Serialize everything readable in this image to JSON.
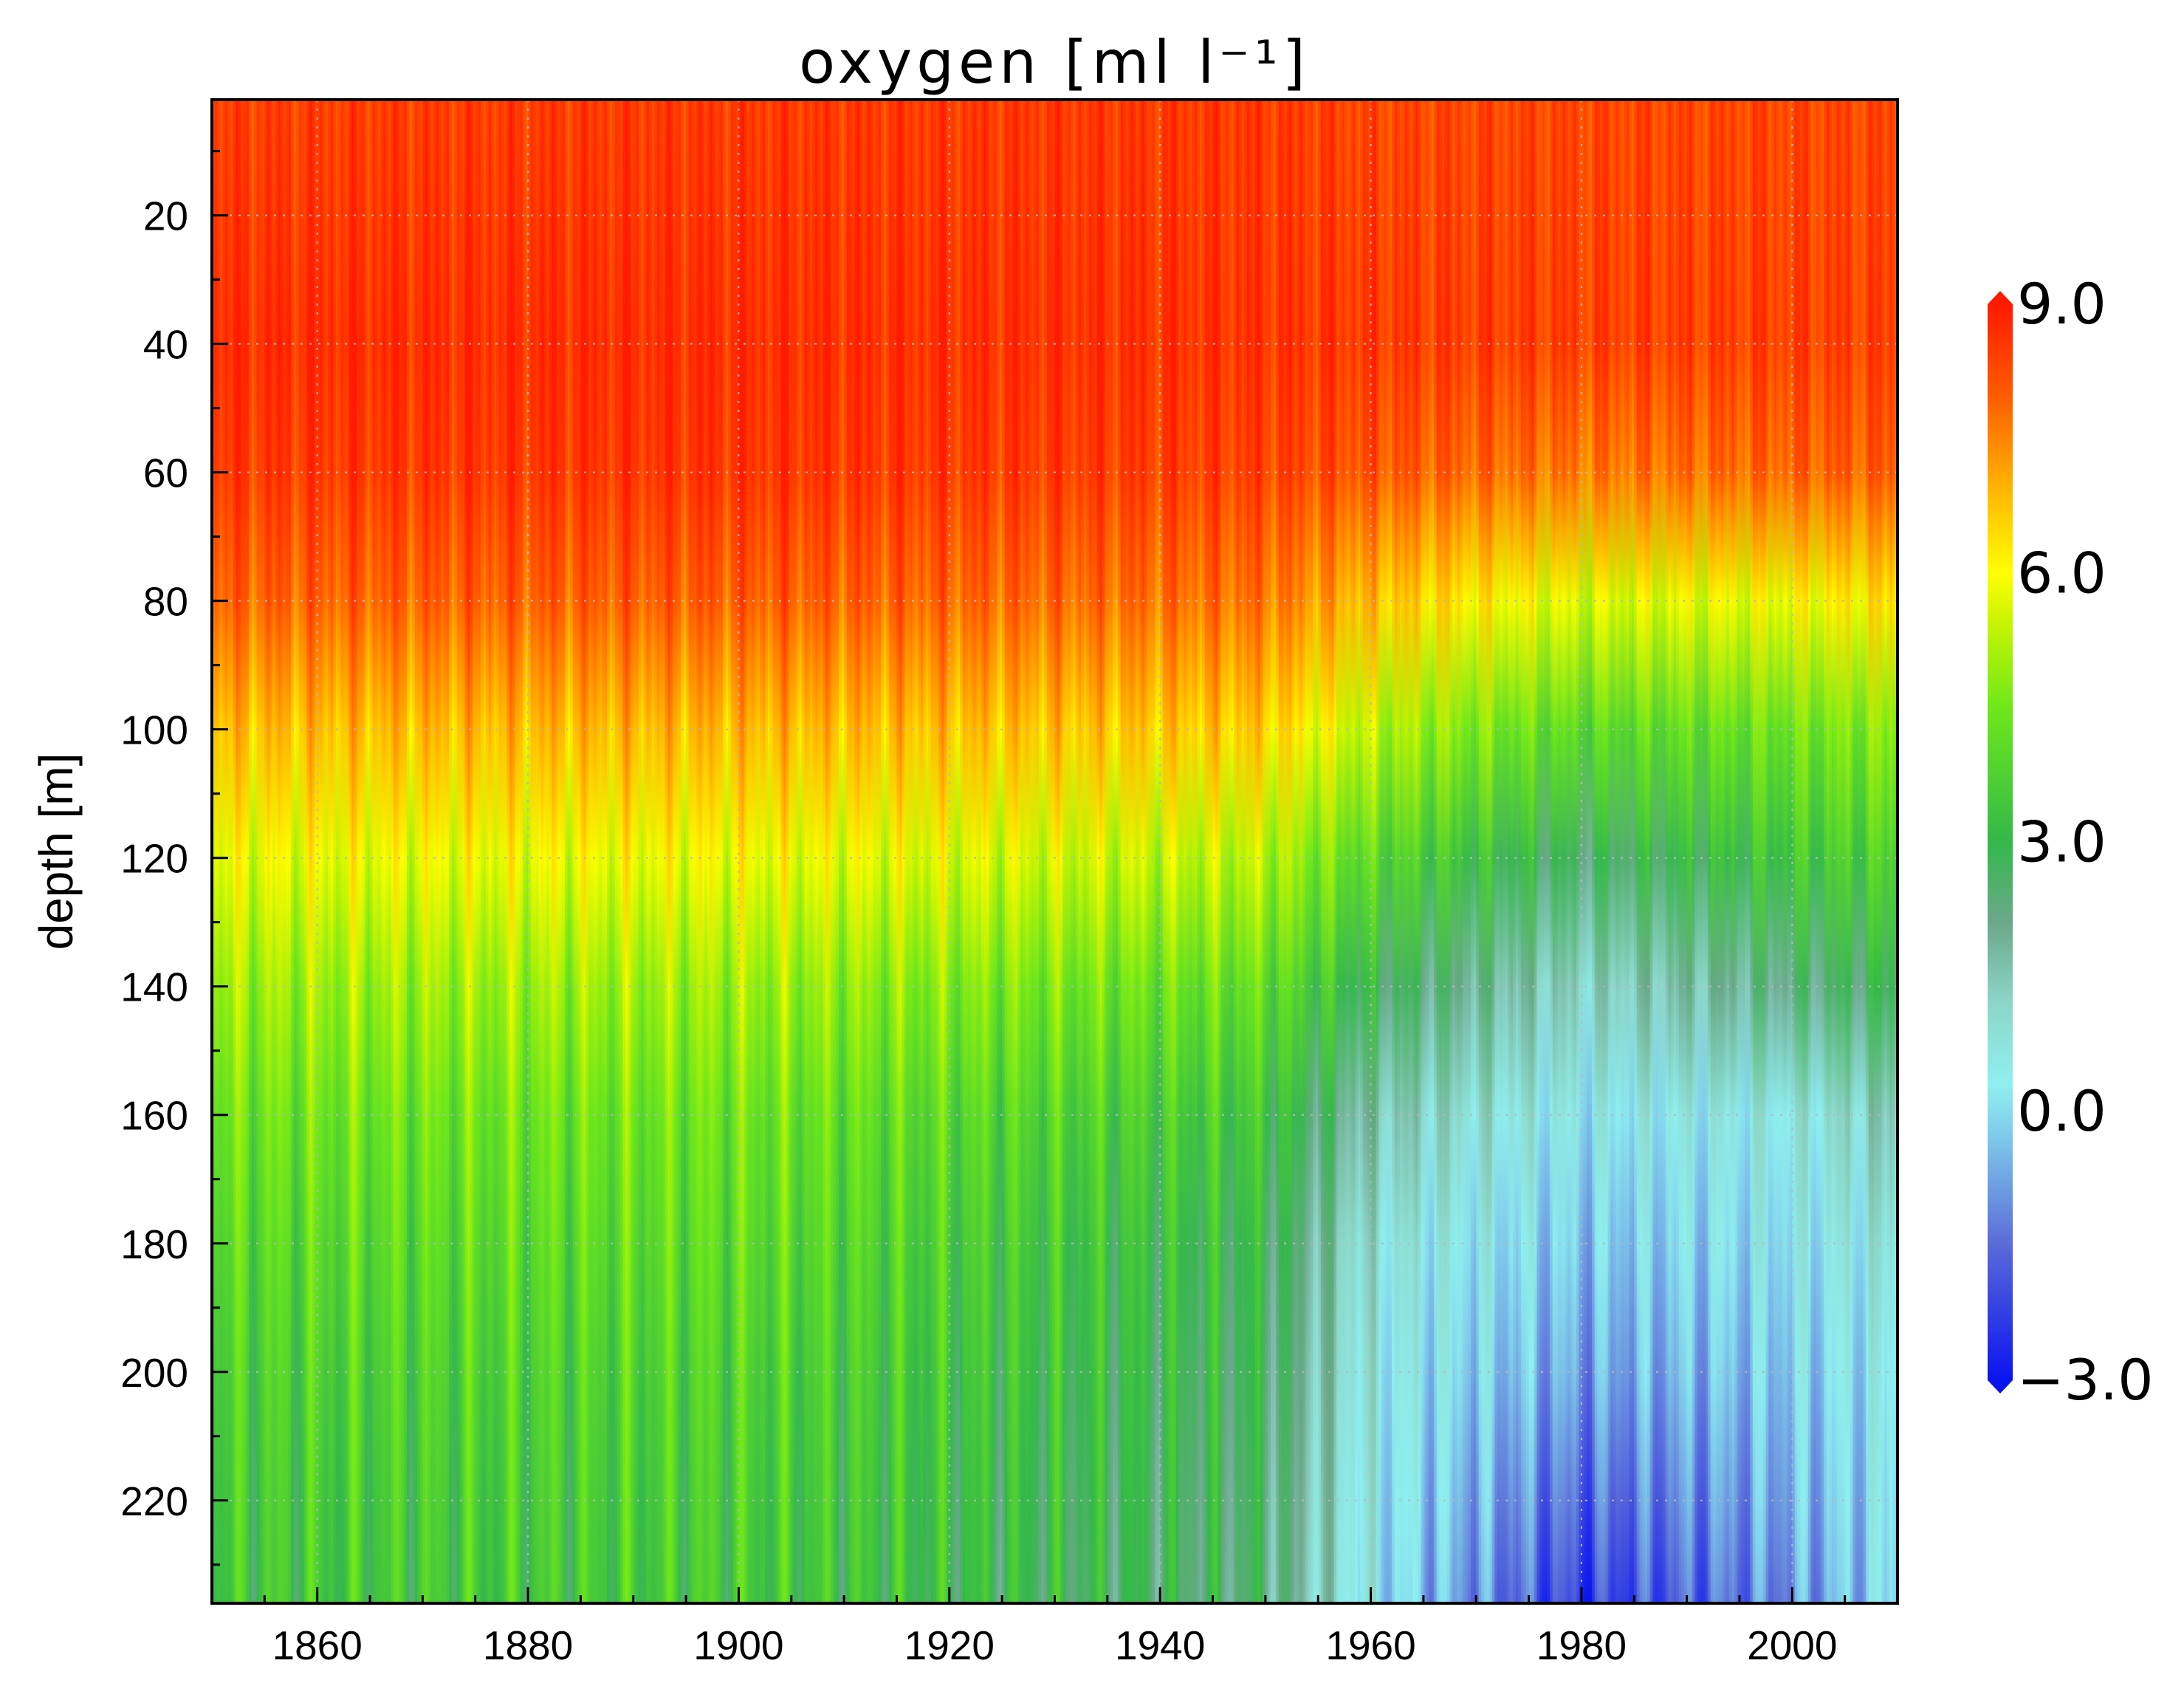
{
  "chart_data": {
    "type": "heatmap",
    "title": "oxygen  [ml l⁻¹]",
    "xlabel": "",
    "ylabel": "depth [m]",
    "xlim": [
      1850,
      2010
    ],
    "ylim": [
      236,
      2
    ],
    "y_inverted": true,
    "x_ticks": [
      "1860",
      "1880",
      "1900",
      "1920",
      "1940",
      "1960",
      "1980",
      "2000"
    ],
    "y_ticks": [
      "20",
      "40",
      "60",
      "80",
      "100",
      "120",
      "140",
      "160",
      "180",
      "200",
      "220"
    ],
    "grid": true,
    "colorbar": {
      "range": [
        -3.0,
        9.0
      ],
      "ticks": [
        "9.0",
        "6.0",
        "3.0",
        "0.0",
        "−3.0"
      ],
      "stops": [
        {
          "value": -3.0,
          "color": "#0a14f0"
        },
        {
          "value": -1.5,
          "color": "#5a6ad8"
        },
        {
          "value": -0.3,
          "color": "#7ec8ea"
        },
        {
          "value": 0.3,
          "color": "#8ff0f0"
        },
        {
          "value": 1.2,
          "color": "#8cd6c8"
        },
        {
          "value": 2.1,
          "color": "#6ca88c"
        },
        {
          "value": 3.0,
          "color": "#33b84a"
        },
        {
          "value": 4.5,
          "color": "#6ee81a"
        },
        {
          "value": 5.5,
          "color": "#cdf500"
        },
        {
          "value": 6.0,
          "color": "#ffff00"
        },
        {
          "value": 7.0,
          "color": "#ffb000"
        },
        {
          "value": 8.0,
          "color": "#ff5a00"
        },
        {
          "value": 9.0,
          "color": "#ff1a00"
        }
      ]
    },
    "depth_profile_years": [
      1850,
      1900,
      1950,
      1960,
      1980,
      2000,
      2010
    ],
    "depth_profile": [
      {
        "depth": 2,
        "values": [
          8.4,
          8.5,
          8.5,
          8.3,
          8.3,
          8.3,
          8.3
        ]
      },
      {
        "depth": 40,
        "values": [
          8.7,
          8.7,
          8.6,
          8.5,
          8.4,
          8.4,
          8.4
        ]
      },
      {
        "depth": 60,
        "values": [
          8.5,
          8.6,
          8.4,
          8.1,
          7.6,
          7.9,
          8.0
        ]
      },
      {
        "depth": 80,
        "values": [
          7.9,
          8.0,
          7.7,
          6.8,
          5.6,
          5.9,
          6.4
        ]
      },
      {
        "depth": 100,
        "values": [
          6.8,
          6.9,
          6.6,
          5.3,
          4.0,
          4.4,
          4.8
        ]
      },
      {
        "depth": 120,
        "values": [
          5.8,
          5.9,
          5.3,
          4.0,
          2.5,
          3.4,
          3.8
        ]
      },
      {
        "depth": 140,
        "values": [
          5.0,
          5.0,
          4.2,
          2.8,
          1.2,
          2.2,
          2.8
        ]
      },
      {
        "depth": 160,
        "values": [
          4.4,
          4.4,
          3.4,
          1.6,
          0.3,
          0.6,
          1.5
        ]
      },
      {
        "depth": 180,
        "values": [
          4.0,
          4.1,
          2.9,
          0.9,
          -0.3,
          0.2,
          0.8
        ]
      },
      {
        "depth": 200,
        "values": [
          3.7,
          3.8,
          2.7,
          0.6,
          -0.8,
          -0.2,
          0.4
        ]
      },
      {
        "depth": 220,
        "values": [
          3.5,
          3.6,
          2.5,
          0.4,
          -1.6,
          -0.6,
          0.2
        ]
      },
      {
        "depth": 236,
        "values": [
          3.4,
          3.5,
          2.4,
          0.3,
          -2.3,
          -1.0,
          0.1
        ]
      }
    ]
  }
}
